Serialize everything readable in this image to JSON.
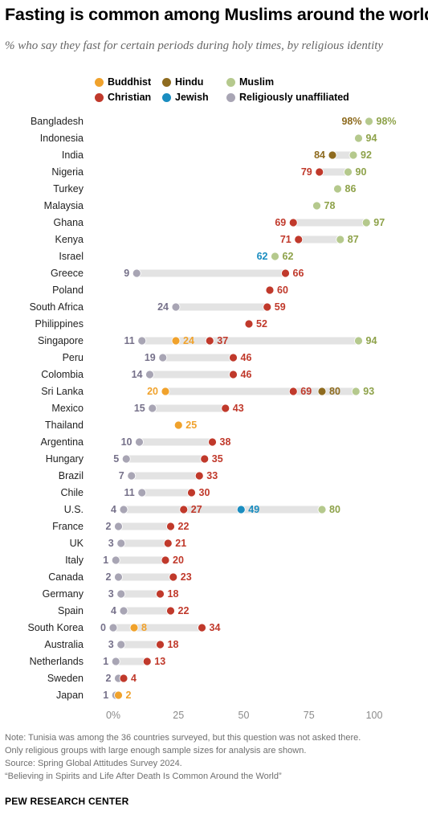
{
  "title": "Fasting is common among Muslims around the world",
  "subtitle": "% who say they fast for certain periods during holy times, by religious identity",
  "colors": {
    "Buddhist": "#f0a22c",
    "Hindu": "#8e6b1f",
    "Muslim": "#b5c98d",
    "Christian": "#c0392b",
    "Jewish": "#1a8dc0",
    "Religiously unaffiliated": "#a8a5b4",
    "track": "#e3e3e3"
  },
  "label_colors": {
    "Buddhist": "#f0a22c",
    "Hindu": "#8e6b1f",
    "Muslim": "#8ea24a",
    "Christian": "#c0392b",
    "Jewish": "#1a8dc0",
    "Religiously unaffiliated": "#76718a"
  },
  "legend": [
    {
      "key": "Buddhist",
      "label": "Buddhist"
    },
    {
      "key": "Hindu",
      "label": "Hindu"
    },
    {
      "key": "Muslim",
      "label": "Muslim"
    },
    {
      "key": "Christian",
      "label": "Christian"
    },
    {
      "key": "Jewish",
      "label": "Jewish"
    },
    {
      "key": "Religiously unaffiliated",
      "label": "Religiously unaffiliated"
    }
  ],
  "chart_data": {
    "type": "scatter",
    "xlim": [
      0,
      100
    ],
    "xticks": [
      "0%",
      "25",
      "50",
      "75",
      "100"
    ],
    "xtick_values": [
      0,
      25,
      50,
      75,
      100
    ],
    "rows": [
      {
        "country": "Bangladesh",
        "values": {
          "Hindu": 98,
          "Muslim": 98
        }
      },
      {
        "country": "Indonesia",
        "values": {
          "Muslim": 94
        }
      },
      {
        "country": "India",
        "values": {
          "Hindu": 84,
          "Muslim": 92
        }
      },
      {
        "country": "Nigeria",
        "values": {
          "Christian": 79,
          "Muslim": 90
        }
      },
      {
        "country": "Turkey",
        "values": {
          "Muslim": 86
        }
      },
      {
        "country": "Malaysia",
        "values": {
          "Muslim": 78
        }
      },
      {
        "country": "Ghana",
        "values": {
          "Christian": 69,
          "Muslim": 97
        }
      },
      {
        "country": "Kenya",
        "values": {
          "Christian": 71,
          "Muslim": 87
        }
      },
      {
        "country": "Israel",
        "values": {
          "Jewish": 62,
          "Muslim": 62
        }
      },
      {
        "country": "Greece",
        "values": {
          "Religiously unaffiliated": 9,
          "Christian": 66
        }
      },
      {
        "country": "Poland",
        "values": {
          "Christian": 60
        }
      },
      {
        "country": "South Africa",
        "values": {
          "Religiously unaffiliated": 24,
          "Christian": 59
        }
      },
      {
        "country": "Philippines",
        "values": {
          "Christian": 52
        }
      },
      {
        "country": "Singapore",
        "values": {
          "Religiously unaffiliated": 11,
          "Buddhist": 24,
          "Christian": 37,
          "Muslim": 94
        }
      },
      {
        "country": "Peru",
        "values": {
          "Religiously unaffiliated": 19,
          "Christian": 46
        }
      },
      {
        "country": "Colombia",
        "values": {
          "Religiously unaffiliated": 14,
          "Christian": 46
        }
      },
      {
        "country": "Sri Lanka",
        "values": {
          "Buddhist": 20,
          "Christian": 69,
          "Hindu": 80,
          "Muslim": 93
        }
      },
      {
        "country": "Mexico",
        "values": {
          "Religiously unaffiliated": 15,
          "Christian": 43
        }
      },
      {
        "country": "Thailand",
        "values": {
          "Buddhist": 25
        }
      },
      {
        "country": "Argentina",
        "values": {
          "Religiously unaffiliated": 10,
          "Christian": 38
        }
      },
      {
        "country": "Hungary",
        "values": {
          "Religiously unaffiliated": 5,
          "Christian": 35
        }
      },
      {
        "country": "Brazil",
        "values": {
          "Religiously unaffiliated": 7,
          "Christian": 33
        }
      },
      {
        "country": "Chile",
        "values": {
          "Religiously unaffiliated": 11,
          "Christian": 30
        }
      },
      {
        "country": "U.S.",
        "values": {
          "Religiously unaffiliated": 4,
          "Christian": 27,
          "Jewish": 49,
          "Muslim": 80
        }
      },
      {
        "country": "France",
        "values": {
          "Religiously unaffiliated": 2,
          "Christian": 22
        }
      },
      {
        "country": "UK",
        "values": {
          "Religiously unaffiliated": 3,
          "Christian": 21
        }
      },
      {
        "country": "Italy",
        "values": {
          "Religiously unaffiliated": 1,
          "Christian": 20
        }
      },
      {
        "country": "Canada",
        "values": {
          "Religiously unaffiliated": 2,
          "Christian": 23
        }
      },
      {
        "country": "Germany",
        "values": {
          "Religiously unaffiliated": 3,
          "Christian": 18
        }
      },
      {
        "country": "Spain",
        "values": {
          "Religiously unaffiliated": 4,
          "Christian": 22
        }
      },
      {
        "country": "South Korea",
        "values": {
          "Religiously unaffiliated": 0,
          "Buddhist": 8,
          "Christian": 34
        }
      },
      {
        "country": "Australia",
        "values": {
          "Religiously unaffiliated": 3,
          "Christian": 18
        }
      },
      {
        "country": "Netherlands",
        "values": {
          "Religiously unaffiliated": 1,
          "Christian": 13
        }
      },
      {
        "country": "Sweden",
        "values": {
          "Religiously unaffiliated": 2,
          "Christian": 4
        }
      },
      {
        "country": "Japan",
        "values": {
          "Religiously unaffiliated": 1,
          "Buddhist": 2
        }
      }
    ]
  },
  "notes": {
    "line1": "Note: Tunisia was among the 36 countries surveyed, but this question was not asked there.",
    "line2": "Only religious groups with large enough sample sizes for analysis are shown.",
    "line3": "Source: Spring Global Attitudes Survey 2024.",
    "line4": "“Believing in Spirits and Life After Death Is Common Around the World”"
  },
  "logo": "PEW RESEARCH CENTER"
}
